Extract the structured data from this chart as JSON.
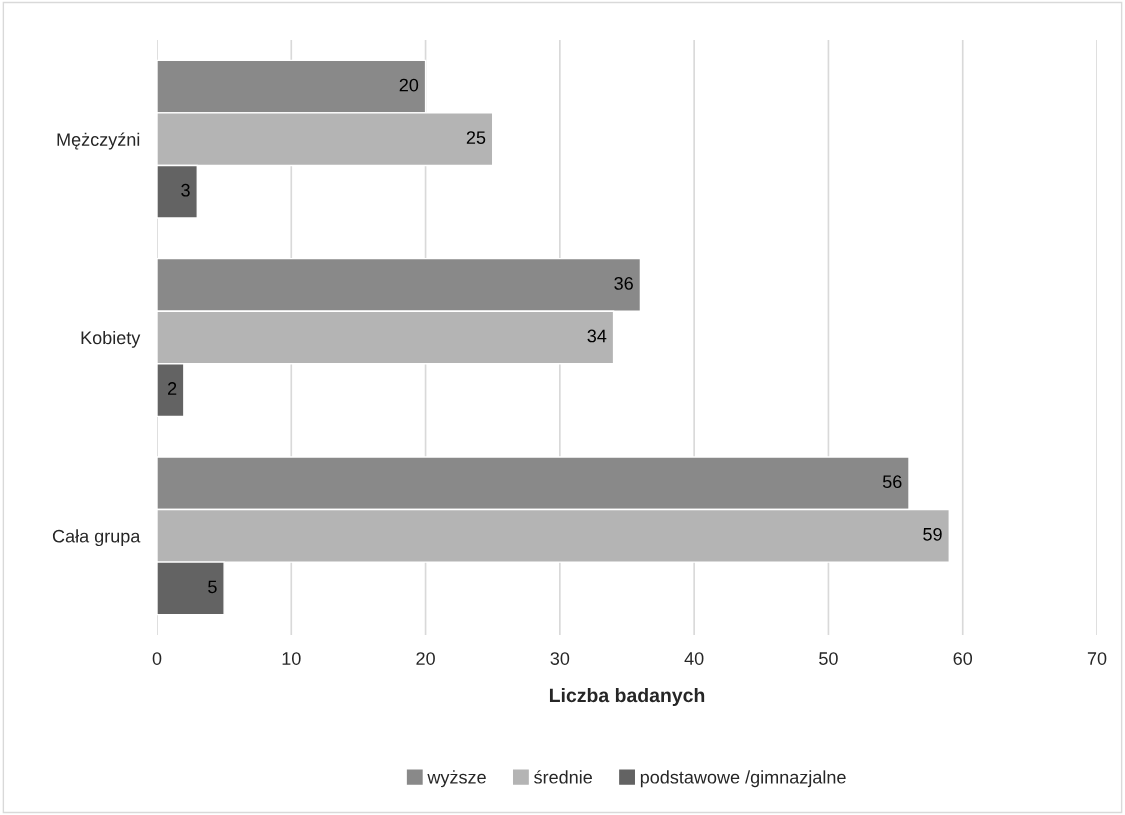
{
  "chart_data": {
    "type": "bar",
    "orientation": "horizontal",
    "xlabel": "Liczba badanych",
    "categories": [
      "Mężczyźni",
      "Kobiety",
      "Cała grupa"
    ],
    "series": [
      {
        "name": "wyższe",
        "color": "#898989",
        "values": [
          20,
          36,
          56
        ]
      },
      {
        "name": "średnie",
        "color": "#b4b4b4",
        "values": [
          25,
          34,
          59
        ]
      },
      {
        "name": "podstawowe /gimnazjalne",
        "color": "#636363",
        "values": [
          3,
          2,
          5
        ]
      }
    ],
    "xlim": [
      0,
      70
    ],
    "xticks": [
      0,
      10,
      20,
      30,
      40,
      50,
      60,
      70
    ],
    "grid": "x",
    "legend": "bottom",
    "data_labels": true
  }
}
